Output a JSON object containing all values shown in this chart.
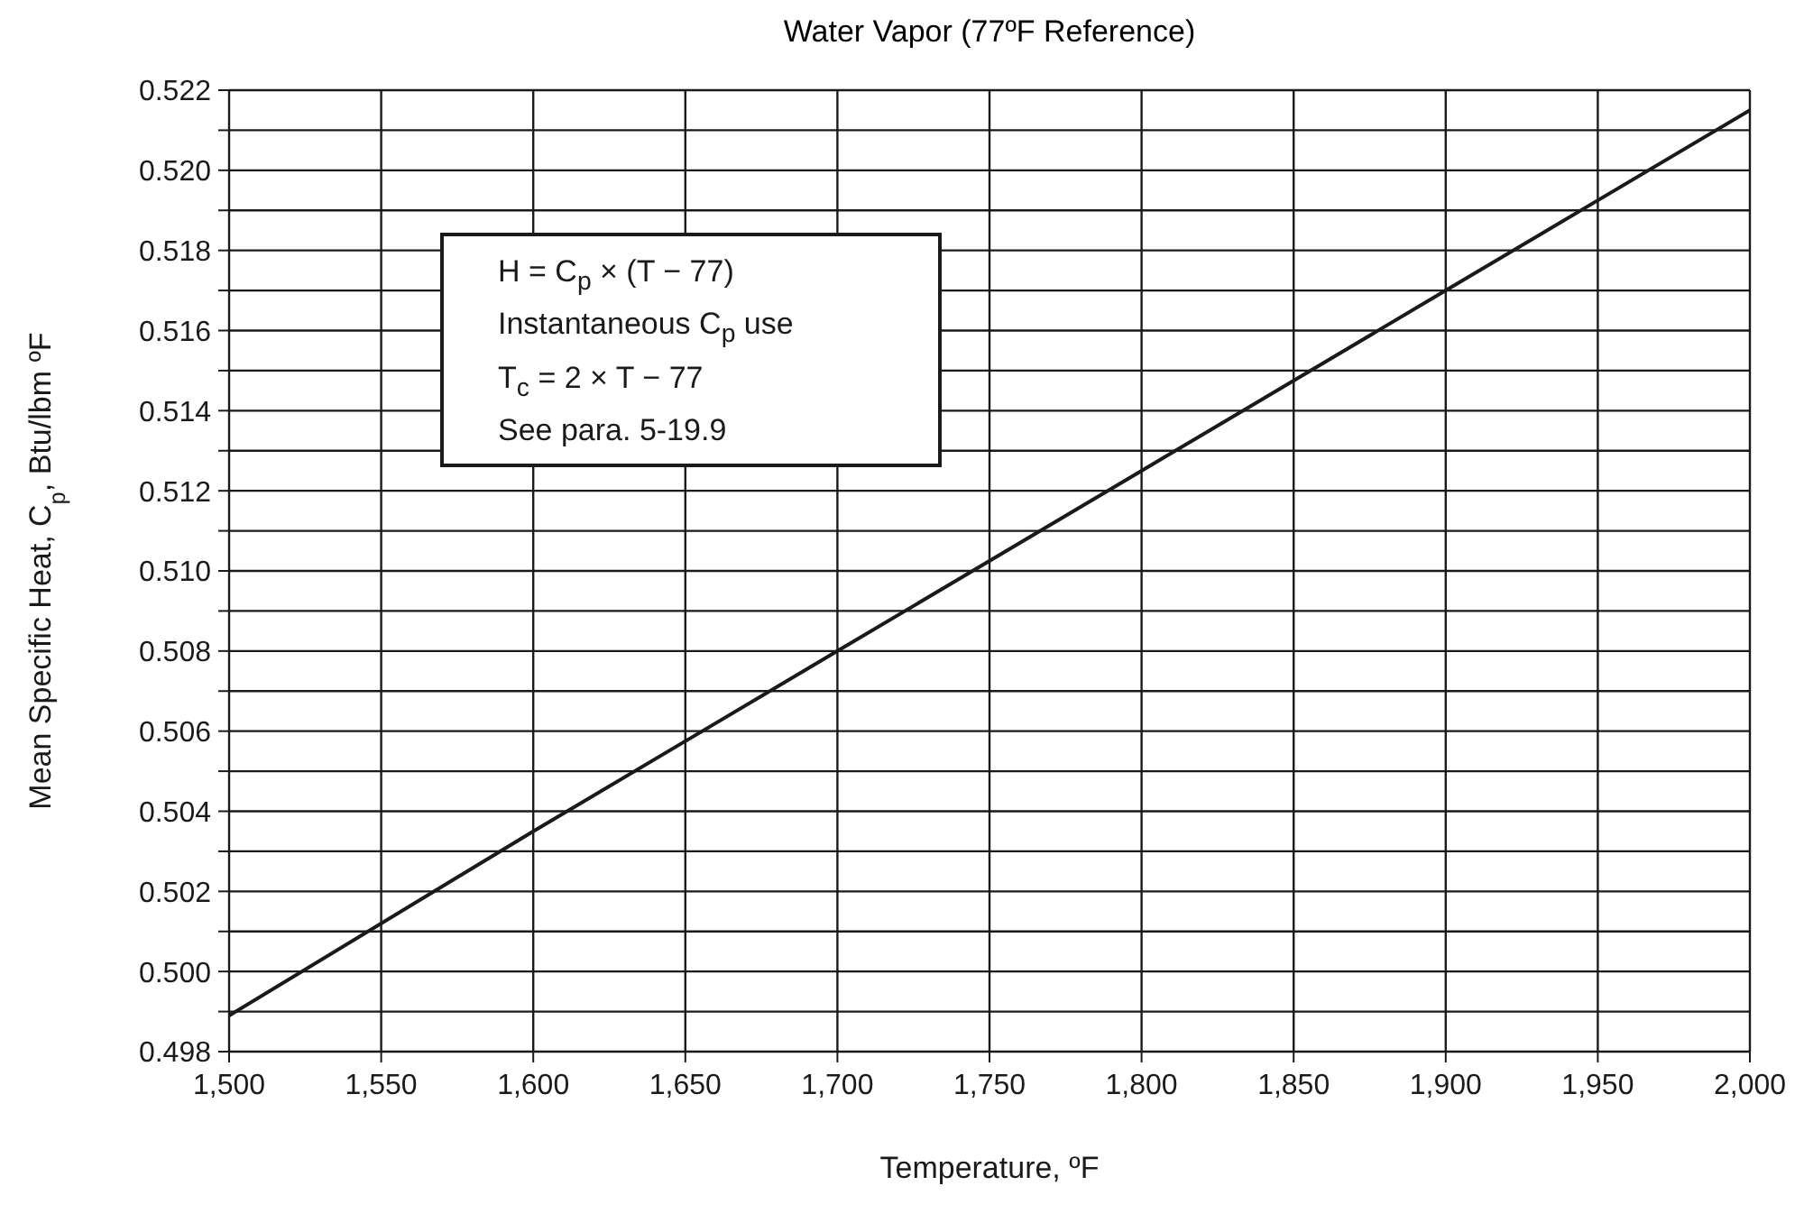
{
  "chart_data": {
    "type": "line",
    "title": "Water Vapor (77ºF Reference)",
    "xlabel": "Temperature, ºF",
    "ylabel": "Mean Specific Heat, C$_{p}$, Btu/lbm ºF",
    "x": [
      1500,
      1600,
      1700,
      1800,
      1900,
      2000
    ],
    "series": [
      {
        "color": "#1a1a1a",
        "values": [
          0.4989,
          0.5035,
          0.508,
          0.5125,
          0.517,
          0.5215
        ]
      }
    ],
    "xlim": [
      1500,
      2000
    ],
    "xticks": [
      {
        "value": 1500,
        "label": "1,500"
      },
      {
        "value": 1550,
        "label": "1,550"
      },
      {
        "value": 1600,
        "label": "1,600"
      },
      {
        "value": 1650,
        "label": "1,650"
      },
      {
        "value": 1700,
        "label": "1,700"
      },
      {
        "value": 1750,
        "label": "1,750"
      },
      {
        "value": 1800,
        "label": "1,800"
      },
      {
        "value": 1850,
        "label": "1,850"
      },
      {
        "value": 1900,
        "label": "1,900"
      },
      {
        "value": 1950,
        "label": "1,950"
      },
      {
        "value": 2000,
        "label": "2,000"
      }
    ],
    "ylim": [
      0.498,
      0.522
    ],
    "yticks": [
      0.498,
      {
        "value": 0.499,
        "label": null
      },
      {
        "value": 0.5,
        "label": "0.500"
      },
      {
        "value": 0.501,
        "label": null
      },
      0.502,
      {
        "value": 0.503,
        "label": null
      },
      0.504,
      {
        "value": 0.505,
        "label": null
      },
      0.506,
      {
        "value": 0.507,
        "label": null
      },
      0.508,
      {
        "value": 0.509,
        "label": null
      },
      {
        "value": 0.51,
        "label": "0.510"
      },
      {
        "value": 0.511,
        "label": null
      },
      0.512,
      {
        "value": 0.513,
        "label": null
      },
      0.514,
      {
        "value": 0.515,
        "label": null
      },
      0.516,
      {
        "value": 0.517,
        "label": null
      },
      0.518,
      {
        "value": 0.519,
        "label": null
      },
      {
        "value": 0.52,
        "label": "0.520"
      },
      {
        "value": 0.521,
        "label": null
      },
      0.522
    ],
    "grid": true,
    "annotations": [
      "H = C$_{p}$ × (T − 77)",
      "Instantaneous C$_{p}$ use",
      "T$_{c}$ = 2 × T − 77",
      "See para. 5-19.9"
    ]
  }
}
